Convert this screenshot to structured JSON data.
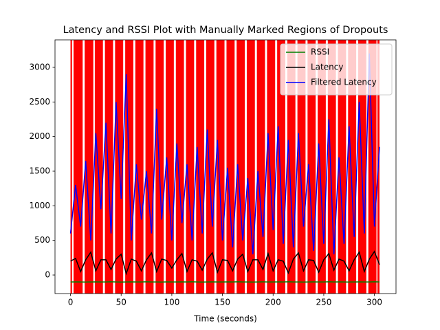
{
  "chart_data": {
    "type": "line",
    "title": "Latency and RSSI Plot with Manually Marked Regions of Dropouts",
    "x_label": "Time (seconds)",
    "x": [
      0,
      5,
      10,
      15,
      20,
      25,
      30,
      35,
      40,
      45,
      50,
      55,
      60,
      65,
      70,
      75,
      80,
      85,
      90,
      95,
      100,
      105,
      110,
      115,
      120,
      125,
      130,
      135,
      140,
      145,
      150,
      155,
      160,
      165,
      170,
      175,
      180,
      185,
      190,
      195,
      200,
      205,
      210,
      215,
      220,
      225,
      230,
      235,
      240,
      245,
      250,
      255,
      260,
      265,
      270,
      275,
      280,
      285,
      290,
      295,
      300,
      305
    ],
    "series": [
      {
        "name": "RSSI",
        "color": "#008000",
        "values": [
          -100,
          -99,
          -100,
          -101,
          -100,
          -99,
          -100,
          -100,
          -98,
          -100,
          -101,
          -100,
          -99,
          -100,
          -100,
          -98,
          -100,
          -100,
          -101,
          -99,
          -100,
          -100,
          -99,
          -100,
          -98,
          -100,
          -101,
          -100,
          -99,
          -100,
          -100,
          -99,
          -100,
          -98,
          -100,
          -100,
          -101,
          -100,
          -99,
          -100,
          -100,
          -99,
          -100,
          -98,
          -100,
          -100,
          -101,
          -100,
          -99,
          -100,
          -100,
          -98,
          -100,
          -99,
          -100,
          -101,
          -100,
          -99,
          -100,
          -100,
          -98,
          -100
        ]
      },
      {
        "name": "Latency",
        "color": "#000000",
        "values": [
          200,
          240,
          50,
          220,
          330,
          60,
          220,
          220,
          80,
          230,
          300,
          20,
          230,
          200,
          60,
          220,
          320,
          50,
          230,
          210,
          100,
          220,
          310,
          50,
          220,
          200,
          70,
          230,
          320,
          40,
          220,
          210,
          60,
          230,
          300,
          50,
          220,
          220,
          80,
          310,
          60,
          220,
          200,
          30,
          230,
          320,
          60,
          220,
          210,
          40,
          220,
          310,
          70,
          230,
          200,
          60,
          220,
          330,
          50,
          230,
          340,
          150
        ]
      },
      {
        "name": "Filtered Latency",
        "color": "#0000ff",
        "values": [
          600,
          1300,
          700,
          1650,
          500,
          2050,
          950,
          2200,
          600,
          2500,
          1100,
          2900,
          500,
          1600,
          800,
          1500,
          600,
          2400,
          800,
          1700,
          500,
          1900,
          750,
          1600,
          500,
          1850,
          600,
          2100,
          700,
          1950,
          500,
          1550,
          400,
          1600,
          500,
          1400,
          300,
          1500,
          550,
          2050,
          650,
          2150,
          450,
          1950,
          400,
          2050,
          700,
          1600,
          350,
          1900,
          450,
          2250,
          300,
          1700,
          450,
          2150,
          550,
          2500,
          600,
          3200,
          700,
          1850
        ]
      }
    ],
    "regions": [
      [
        0,
        1.5
      ],
      [
        3,
        12
      ],
      [
        14,
        22.5
      ],
      [
        24,
        32
      ],
      [
        34,
        42
      ],
      [
        44,
        52
      ],
      [
        54,
        62
      ],
      [
        64,
        72
      ],
      [
        74,
        82
      ],
      [
        84,
        92
      ],
      [
        94,
        102
      ],
      [
        104,
        112
      ],
      [
        114,
        122
      ],
      [
        124,
        132
      ],
      [
        134,
        142
      ],
      [
        144,
        152
      ],
      [
        154,
        162
      ],
      [
        164,
        172
      ],
      [
        174,
        182
      ],
      [
        184,
        192
      ],
      [
        194,
        202
      ],
      [
        204,
        212
      ],
      [
        214,
        222
      ],
      [
        224,
        232
      ],
      [
        234,
        242
      ],
      [
        244,
        252
      ],
      [
        254,
        262
      ],
      [
        264,
        272
      ],
      [
        274,
        282
      ],
      [
        284,
        292
      ],
      [
        294,
        302
      ],
      [
        303,
        305
      ]
    ],
    "region_color": "#ff0000",
    "xlim": [
      -15.3,
      321.3
    ],
    "ylim": [
      -268,
      3397
    ],
    "xticks": [
      0,
      50,
      100,
      150,
      200,
      250,
      300
    ],
    "yticks": [
      0,
      500,
      1000,
      1500,
      2000,
      2500,
      3000
    ],
    "legend": "upper right"
  }
}
